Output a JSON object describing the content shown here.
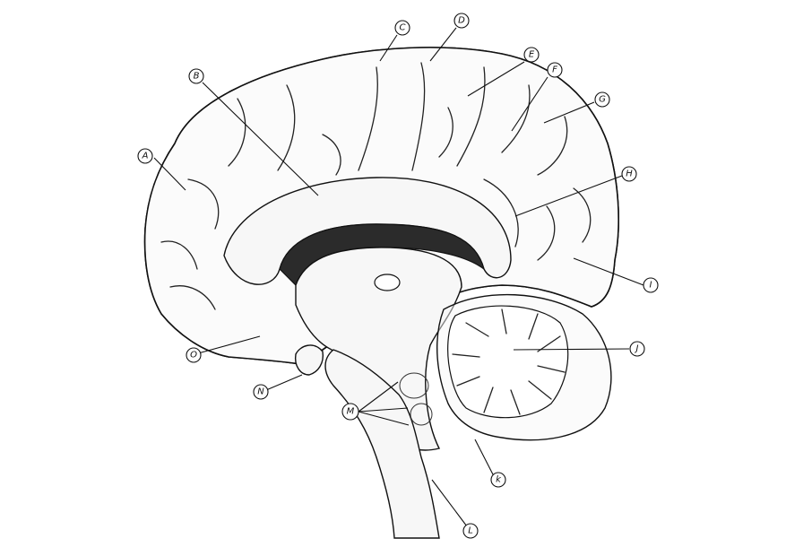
{
  "diagram": {
    "labels": {
      "a": "A",
      "b": "B",
      "c": "C",
      "d": "D",
      "e": "E",
      "f": "F",
      "g": "G",
      "h": "H",
      "i": "I",
      "j": "J",
      "k": "k",
      "l": "L",
      "m": "M",
      "n": "N",
      "o": "O"
    }
  }
}
